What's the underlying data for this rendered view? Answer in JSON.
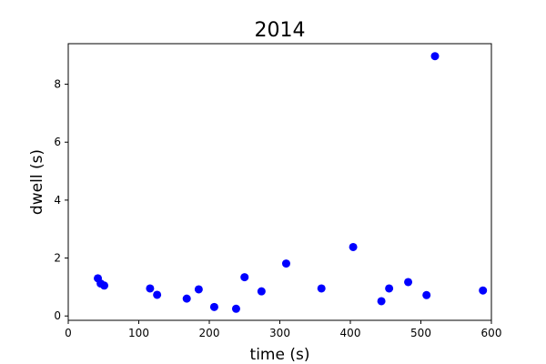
{
  "chart_data": {
    "type": "scatter",
    "title": "2014",
    "xlabel": "time (s)",
    "ylabel": "dwell (s)",
    "xlim": [
      0,
      600
    ],
    "ylim": [
      -0.15,
      9.4
    ],
    "xticks": [
      0,
      100,
      200,
      300,
      400,
      500,
      600
    ],
    "yticks": [
      0,
      2,
      4,
      6,
      8
    ],
    "grid": false,
    "legend": "none",
    "marker_color": "#0000ff",
    "points": [
      {
        "x": 42,
        "y": 1.3
      },
      {
        "x": 46,
        "y": 1.12
      },
      {
        "x": 51,
        "y": 1.05
      },
      {
        "x": 116,
        "y": 0.95
      },
      {
        "x": 126,
        "y": 0.73
      },
      {
        "x": 168,
        "y": 0.6
      },
      {
        "x": 185,
        "y": 0.92
      },
      {
        "x": 207,
        "y": 0.31
      },
      {
        "x": 238,
        "y": 0.25
      },
      {
        "x": 250,
        "y": 1.34
      },
      {
        "x": 274,
        "y": 0.85
      },
      {
        "x": 309,
        "y": 1.81
      },
      {
        "x": 359,
        "y": 0.95
      },
      {
        "x": 404,
        "y": 2.38
      },
      {
        "x": 444,
        "y": 0.51
      },
      {
        "x": 455,
        "y": 0.95
      },
      {
        "x": 482,
        "y": 1.17
      },
      {
        "x": 508,
        "y": 0.72
      },
      {
        "x": 520,
        "y": 8.97
      },
      {
        "x": 588,
        "y": 0.88
      }
    ]
  }
}
